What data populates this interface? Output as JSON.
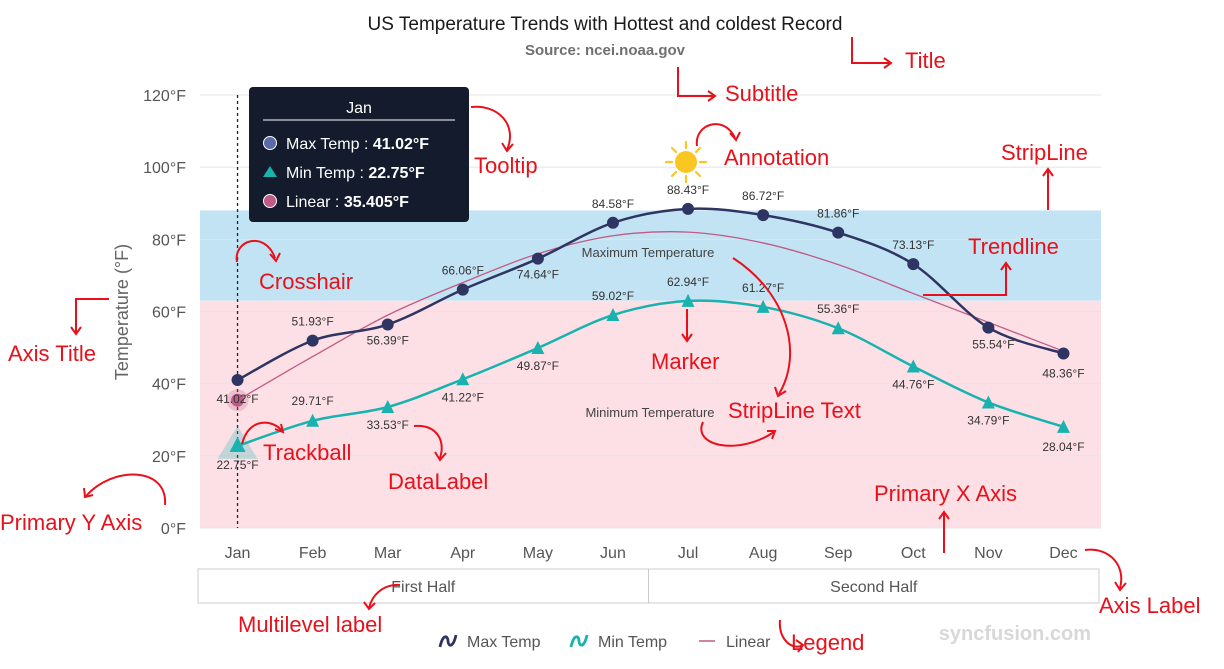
{
  "chart_data": {
    "type": "line",
    "title": "US Temperature Trends with Hottest and coldest Record",
    "subtitle": "Source: ncei.noaa.gov",
    "ylabel": "Temperature (°F)",
    "ylim": [
      0,
      120
    ],
    "ytick_labels": [
      "0°F",
      "20°F",
      "40°F",
      "60°F",
      "80°F",
      "100°F",
      "120°F"
    ],
    "categories": [
      "Jan",
      "Feb",
      "Mar",
      "Apr",
      "May",
      "Jun",
      "Jul",
      "Aug",
      "Sep",
      "Oct",
      "Nov",
      "Dec"
    ],
    "multilevel_labels": [
      "First Half",
      "Second Half"
    ],
    "series": [
      {
        "name": "Max Temp",
        "color": "#2f3563",
        "marker": "circle",
        "values": [
          41.02,
          51.93,
          56.39,
          66.06,
          74.64,
          84.58,
          88.43,
          86.72,
          81.86,
          73.13,
          55.54,
          48.36
        ],
        "labels": [
          "41.02°F",
          "51.93°F",
          "56.39°F",
          "66.06°F",
          "74.64°F",
          "84.58°F",
          "88.43°F",
          "86.72°F",
          "81.86°F",
          "73.13°F",
          "55.54°F",
          "48.36°F"
        ]
      },
      {
        "name": "Min Temp",
        "color": "#19b2ae",
        "marker": "triangle",
        "values": [
          22.75,
          29.71,
          33.53,
          41.22,
          49.87,
          59.02,
          62.94,
          61.27,
          55.36,
          44.76,
          34.79,
          28.04
        ],
        "labels": [
          "22.75°F",
          "29.71°F",
          "33.53°F",
          "41.22°F",
          "49.87°F",
          "59.02°F",
          "62.94°F",
          "61.27°F",
          "55.36°F",
          "44.76°F",
          "34.79°F",
          "28.04°F"
        ]
      }
    ],
    "trendline": {
      "name": "Linear",
      "color": "#c05a86",
      "values": [
        35.405,
        47.5,
        59,
        68,
        76,
        81,
        82,
        79,
        73,
        65,
        57,
        49
      ]
    },
    "striplines": [
      {
        "from": 63,
        "to": 88,
        "color": "#c2e3f3",
        "text": "Maximum Temperature"
      },
      {
        "from": 0,
        "to": 63,
        "color": "#fde0e6",
        "text": "Minimum Temperature"
      }
    ],
    "crosshair_category": "Jan",
    "tooltip": {
      "header": "Jan",
      "rows": [
        {
          "text": "Max Temp : ",
          "value": "41.02°F",
          "color": "#5a6aa8",
          "marker": "circle"
        },
        {
          "text": "Min Temp : ",
          "value": "22.75°F",
          "color": "#19b2ae",
          "marker": "triangle"
        },
        {
          "text": "Linear : ",
          "value": "35.405°F",
          "color": "#c05a86",
          "marker": "circle"
        }
      ]
    },
    "legend": {
      "position": "bottom"
    },
    "watermark": "syncfusion.com",
    "colors": {
      "sun": "#f9c623",
      "annotation": "#e8111b",
      "tooltip_bg": "#131b2d"
    }
  },
  "annotations": {
    "title": "Title",
    "subtitle": "Subtitle",
    "tooltip": "Tooltip",
    "annotation": "Annotation",
    "stripline": "StripLine",
    "trendline": "Trendline",
    "crosshair": "Crosshair",
    "axis_title": "Axis Title",
    "marker": "Marker",
    "stripline_text": "StripLine Text",
    "trackball": "Trackball",
    "datalabel": "DataLabel",
    "primary_x_axis": "Primary X Axis",
    "primary_y_axis": "Primary Y Axis",
    "axis_label": "Axis Label",
    "multilevel_label": "Multilevel label",
    "legend": "Legend"
  }
}
